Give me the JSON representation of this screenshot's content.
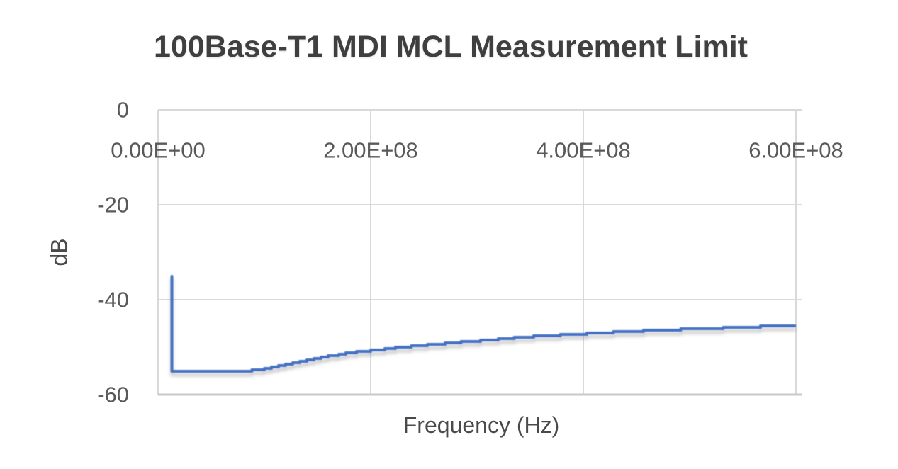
{
  "chart_data": {
    "type": "line",
    "title": "100Base-T1 MDI MCL Measurement Limit",
    "xlabel": "Frequency (Hz)",
    "ylabel": "dB",
    "xlim": [
      0,
      606000000
    ],
    "ylim": [
      -60,
      0
    ],
    "grid": true,
    "legend": false,
    "x_ticks": [
      {
        "value": 0,
        "label": "0.00E+00"
      },
      {
        "value": 200000000,
        "label": "2.00E+08"
      },
      {
        "value": 400000000,
        "label": "4.00E+08"
      },
      {
        "value": 600000000,
        "label": "6.00E+08"
      }
    ],
    "y_ticks": [
      {
        "value": 0,
        "label": "0"
      },
      {
        "value": -20,
        "label": "-20"
      },
      {
        "value": -40,
        "label": "-40"
      },
      {
        "value": -60,
        "label": "-60"
      }
    ],
    "series": [
      {
        "color": "#4472C4",
        "points": [
          [
            12000000,
            -35.0
          ],
          [
            13000000,
            -55.0
          ],
          [
            85000000,
            -55.0
          ],
          [
            100000000,
            -54.6
          ],
          [
            120000000,
            -53.6
          ],
          [
            140000000,
            -52.7
          ],
          [
            160000000,
            -51.9
          ],
          [
            180000000,
            -51.2
          ],
          [
            200000000,
            -50.7
          ],
          [
            225000000,
            -50.1
          ],
          [
            250000000,
            -49.6
          ],
          [
            275000000,
            -49.1
          ],
          [
            300000000,
            -48.7
          ],
          [
            325000000,
            -48.2
          ],
          [
            350000000,
            -47.8
          ],
          [
            375000000,
            -47.5
          ],
          [
            400000000,
            -47.2
          ],
          [
            425000000,
            -46.9
          ],
          [
            450000000,
            -46.6
          ],
          [
            475000000,
            -46.4
          ],
          [
            500000000,
            -46.2
          ],
          [
            525000000,
            -46.0
          ],
          [
            550000000,
            -45.8
          ],
          [
            575000000,
            -45.6
          ],
          [
            600000000,
            -45.5
          ]
        ]
      }
    ]
  },
  "colors": {
    "line": "#4472C4",
    "gridline": "#D9D9D9",
    "axis_bottom_line": "#C9C9C9",
    "tick_text": "#595959",
    "title_text": "#3F3F3F",
    "axis_title_text": "#4A4A4A",
    "background": "#FFFFFF"
  }
}
